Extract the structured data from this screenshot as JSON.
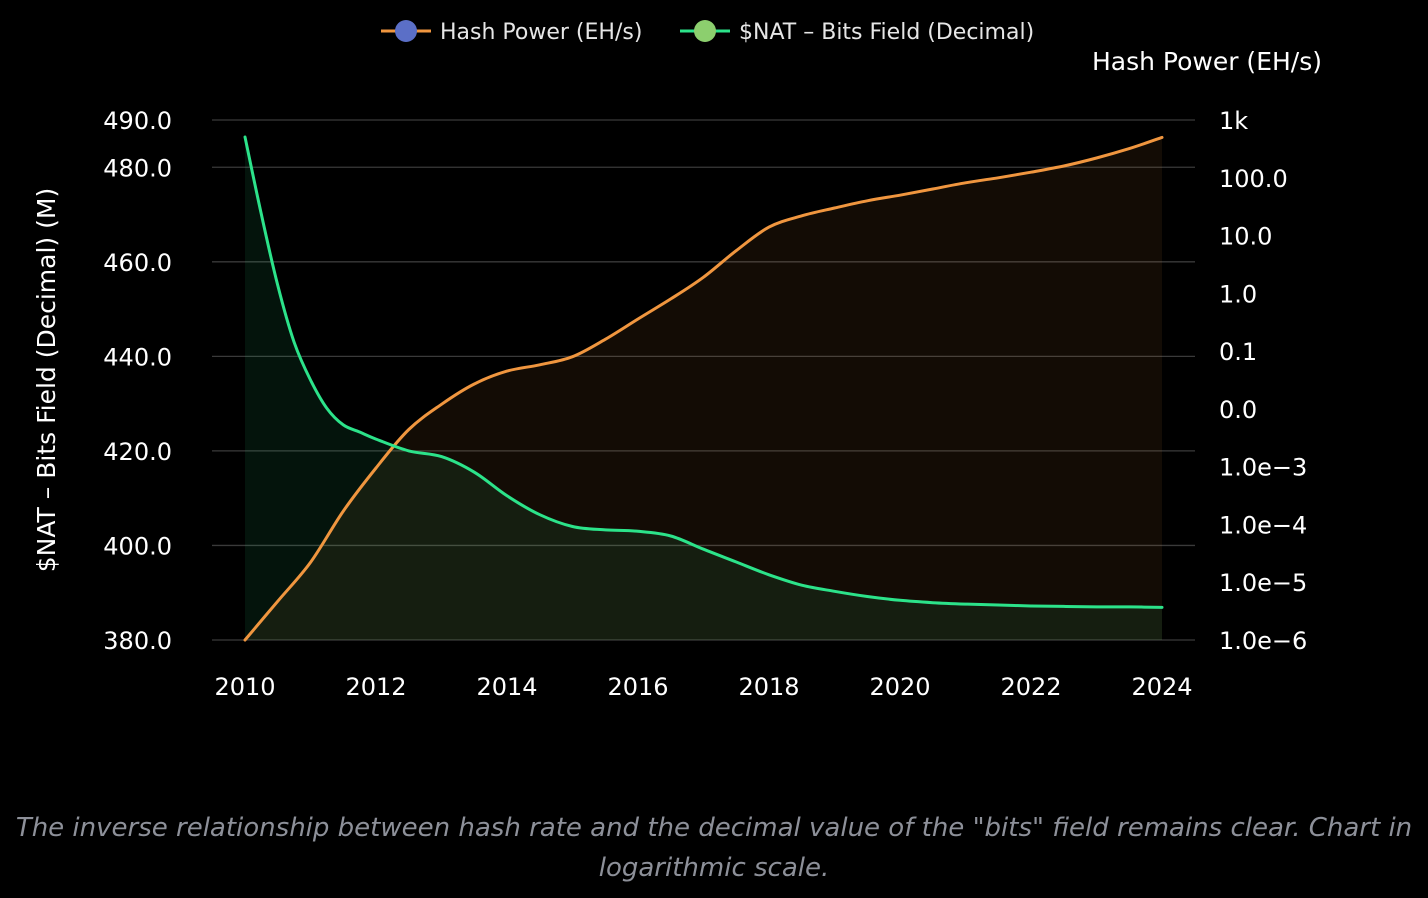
{
  "chart_data": {
    "type": "line",
    "legend": {
      "position": "top-center",
      "items": [
        {
          "label": "Hash Power (EH/s)",
          "line_color": "#f0963f",
          "marker_color": "#5b6fc7"
        },
        {
          "label": "$NAT – Bits Field (Decimal)",
          "line_color": "#2ce38a",
          "marker_color": "#8ccf6e"
        }
      ]
    },
    "xlabel": "",
    "x_ticks": [
      "2010",
      "2012",
      "2014",
      "2016",
      "2018",
      "2020",
      "2022",
      "2024"
    ],
    "xlim": [
      2010,
      2024
    ],
    "y_left": {
      "label": "$NAT – Bits Field (Decimal) (M)",
      "ylim": [
        380,
        490
      ],
      "ticks": [
        "380.0",
        "400.0",
        "420.0",
        "440.0",
        "460.0",
        "480.0",
        "490.0"
      ],
      "tick_values": [
        380,
        400,
        420,
        440,
        460,
        480,
        490
      ]
    },
    "y_right": {
      "label": "Hash Power (EH/s)",
      "scale": "log",
      "ylim": [
        1e-06,
        1000
      ],
      "ticks": [
        "1.0e−6",
        "1.0e−5",
        "1.0e−4",
        "1.0e−3",
        "0.0",
        "0.1",
        "1.0",
        "10.0",
        "100.0",
        "1k"
      ],
      "tick_values": [
        1e-06,
        1e-05,
        0.0001,
        0.001,
        0.01,
        0.1,
        1,
        10,
        100,
        1000
      ]
    },
    "grid": true,
    "series": [
      {
        "name": "Hash Power (EH/s)",
        "axis": "right",
        "color": "#f0963f",
        "x": [
          2010.0,
          2010.5,
          2011.0,
          2011.5,
          2012.0,
          2012.5,
          2013.0,
          2013.5,
          2014.0,
          2014.5,
          2015.0,
          2015.5,
          2016.0,
          2016.5,
          2017.0,
          2017.5,
          2018.0,
          2018.5,
          2019.0,
          2019.5,
          2020.0,
          2020.5,
          2021.0,
          2021.5,
          2022.0,
          2022.5,
          2023.0,
          2023.5,
          2024.0
        ],
        "y": [
          1e-06,
          4.7e-06,
          2.2e-05,
          0.00017,
          0.00095,
          0.0044,
          0.012,
          0.027,
          0.045,
          0.058,
          0.08,
          0.16,
          0.36,
          0.8,
          1.9,
          5.5,
          14,
          22,
          30,
          40,
          50,
          64,
          82,
          100,
          125,
          160,
          220,
          320,
          500
        ]
      },
      {
        "name": "$NAT – Bits Field (Decimal)",
        "axis": "left",
        "color": "#2ce38a",
        "x": [
          2010.0,
          2010.25,
          2010.5,
          2010.75,
          2011.0,
          2011.25,
          2011.5,
          2011.75,
          2012.0,
          2012.5,
          2013.0,
          2013.5,
          2014.0,
          2014.5,
          2015.0,
          2015.5,
          2016.0,
          2016.5,
          2017.0,
          2017.5,
          2018.0,
          2018.5,
          2019.0,
          2019.5,
          2020.0,
          2020.5,
          2021.0,
          2021.5,
          2022.0,
          2022.5,
          2023.0,
          2023.5,
          2024.0
        ],
        "y": [
          486.4,
          470.0,
          455.0,
          443.0,
          435.0,
          429.0,
          425.5,
          424.0,
          422.5,
          420.0,
          418.8,
          415.5,
          410.5,
          406.5,
          404.0,
          403.3,
          403.0,
          402.0,
          399.2,
          396.5,
          393.8,
          391.6,
          390.3,
          389.2,
          388.4,
          387.9,
          387.6,
          387.4,
          387.2,
          387.1,
          387.0,
          387.0,
          386.9
        ]
      }
    ]
  },
  "caption": "The inverse relationship between hash rate and the decimal value of the \"bits\" field remains clear. Chart in logarithmic scale."
}
